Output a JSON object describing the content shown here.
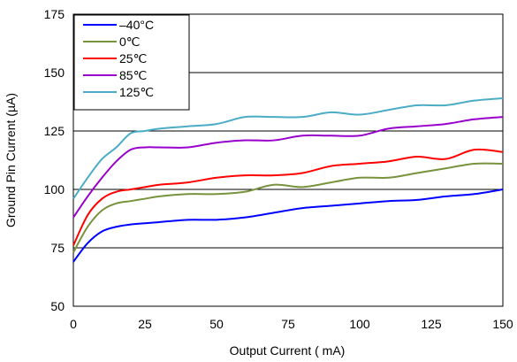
{
  "chart_data": {
    "type": "line",
    "title": "",
    "xlabel": "Output Current ( mA)",
    "ylabel": "Ground Pin Current (µA)",
    "xlim": [
      0,
      150
    ],
    "ylim": [
      50,
      175
    ],
    "xticks": [
      "0",
      "25",
      "50",
      "75",
      "100",
      "125",
      "150"
    ],
    "yticks": [
      "50",
      "75",
      "100",
      "125",
      "150",
      "175"
    ],
    "grid": true,
    "legend_position": "top-left",
    "x": [
      0,
      5,
      10,
      15,
      20,
      25,
      30,
      40,
      50,
      60,
      70,
      80,
      90,
      100,
      110,
      120,
      130,
      140,
      150
    ],
    "series": [
      {
        "name": "–40°C",
        "color": "#0000ff",
        "values": [
          69,
          77,
          82,
          84,
          85,
          85.5,
          86,
          87,
          87,
          88,
          90,
          92,
          93,
          94,
          95,
          95.5,
          97,
          98,
          100
        ]
      },
      {
        "name": "0℃",
        "color": "#77933c",
        "values": [
          73,
          84,
          91,
          94,
          95,
          96,
          97,
          98,
          98,
          99,
          102,
          101,
          103,
          105,
          105,
          107,
          109,
          111,
          111
        ]
      },
      {
        "name": "25℃",
        "color": "#ff0000",
        "values": [
          76,
          89,
          96,
          99,
          100,
          101,
          102,
          103,
          105,
          106,
          106,
          107,
          110,
          111,
          112,
          114,
          113,
          117,
          116
        ]
      },
      {
        "name": "85℃",
        "color": "#9900cc",
        "values": [
          88,
          97,
          105,
          112,
          117,
          118,
          118,
          118,
          120,
          121,
          121,
          123,
          123,
          123,
          126,
          127,
          128,
          130,
          131
        ]
      },
      {
        "name": "125℃",
        "color": "#4bacc6",
        "values": [
          96,
          105,
          113,
          118,
          124,
          125,
          126,
          127,
          128,
          131,
          131,
          131,
          133,
          132,
          134,
          136,
          136,
          138,
          139
        ]
      }
    ]
  }
}
